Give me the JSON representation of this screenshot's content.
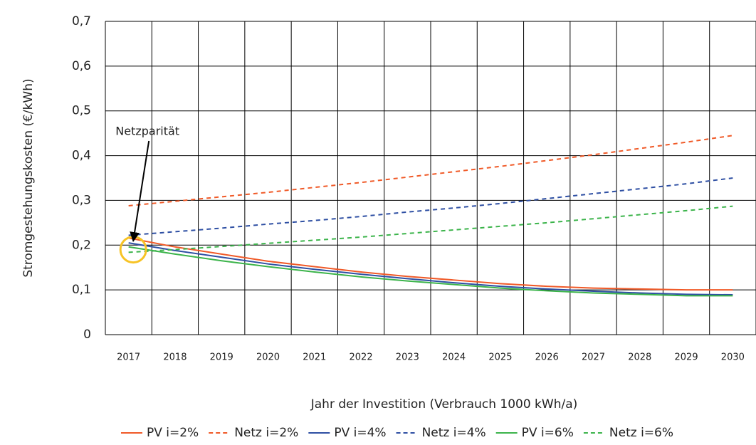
{
  "chart_data": {
    "type": "line",
    "xlabel": "Jahr der Investition (Verbrauch 1000 kWh/a)",
    "ylabel": "Stromgestehungskosten (€/kWh)",
    "categories": [
      "2017",
      "2018",
      "2019",
      "2020",
      "2021",
      "2022",
      "2023",
      "2024",
      "2025",
      "2026",
      "2027",
      "2028",
      "2029",
      "2030"
    ],
    "series": [
      {
        "name": "PV i=2%",
        "color": "#f05a28",
        "linestyle": "solid",
        "values": [
          0.216,
          0.196,
          0.18,
          0.164,
          0.152,
          0.14,
          0.13,
          0.122,
          0.114,
          0.108,
          0.104,
          0.102,
          0.1,
          0.1
        ]
      },
      {
        "name": "Netz i=2%",
        "color": "#f05a28",
        "linestyle": "dashed",
        "values": [
          0.288,
          0.298,
          0.308,
          0.318,
          0.329,
          0.34,
          0.352,
          0.364,
          0.376,
          0.389,
          0.402,
          0.416,
          0.43,
          0.445
        ]
      },
      {
        "name": "PV i=4%",
        "color": "#2e4fa3",
        "linestyle": "solid",
        "values": [
          0.205,
          0.188,
          0.173,
          0.158,
          0.146,
          0.135,
          0.125,
          0.116,
          0.108,
          0.102,
          0.097,
          0.093,
          0.09,
          0.089
        ]
      },
      {
        "name": "Netz i=4%",
        "color": "#2e4fa3",
        "linestyle": "dashed",
        "values": [
          0.222,
          0.23,
          0.238,
          0.247,
          0.255,
          0.264,
          0.274,
          0.283,
          0.293,
          0.304,
          0.315,
          0.326,
          0.337,
          0.35
        ]
      },
      {
        "name": "PV i=6%",
        "color": "#3cb44b",
        "linestyle": "solid",
        "values": [
          0.196,
          0.18,
          0.165,
          0.152,
          0.14,
          0.129,
          0.12,
          0.112,
          0.104,
          0.098,
          0.093,
          0.09,
          0.087,
          0.087
        ]
      },
      {
        "name": "Netz i=6%",
        "color": "#3cb44b",
        "linestyle": "dashed",
        "values": [
          0.184,
          0.19,
          0.197,
          0.204,
          0.211,
          0.218,
          0.226,
          0.234,
          0.242,
          0.25,
          0.259,
          0.268,
          0.277,
          0.287
        ]
      }
    ],
    "ylim": [
      0,
      0.7
    ],
    "yticks": [
      0,
      {
        "value": 0.1,
        "label": "0,1"
      },
      {
        "value": 0.2,
        "label": "0,2"
      },
      {
        "value": 0.3,
        "label": "0,3"
      },
      {
        "value": 0.4,
        "label": "0,4"
      },
      {
        "value": 0.5,
        "label": "0,5"
      },
      {
        "value": 0.6,
        "label": "0,6"
      },
      {
        "value": 0.7,
        "label": "0,7"
      }
    ],
    "grid": true,
    "legend": "bottom",
    "annotation": {
      "text": "Netzparität",
      "category": 0.6,
      "value": 0.19,
      "color": "#f7c325"
    }
  }
}
